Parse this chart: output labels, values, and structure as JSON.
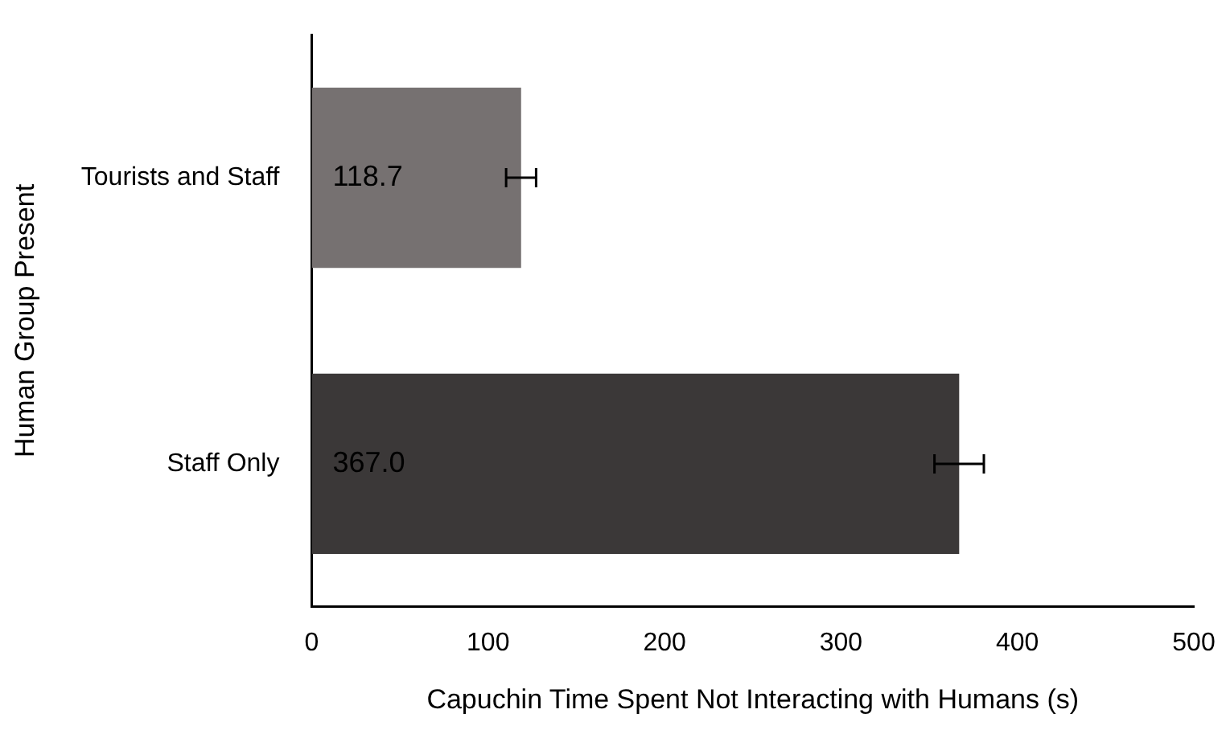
{
  "chart_data": {
    "type": "bar",
    "orientation": "horizontal",
    "xlabel": "Capuchin Time Spent Not Interacting with Humans (s)",
    "ylabel": "Human Group Present",
    "categories": [
      "Tourists and Staff",
      "Staff Only"
    ],
    "values": [
      118.7,
      367.0
    ],
    "colors": [
      "#767171",
      "#3b3838"
    ],
    "errors": [
      8.5,
      14
    ],
    "value_labels": [
      "118.7",
      "367.0"
    ],
    "xlim": [
      0,
      500
    ],
    "xticks": [
      0,
      100,
      200,
      300,
      400,
      500
    ],
    "grid": false,
    "legend": false
  }
}
